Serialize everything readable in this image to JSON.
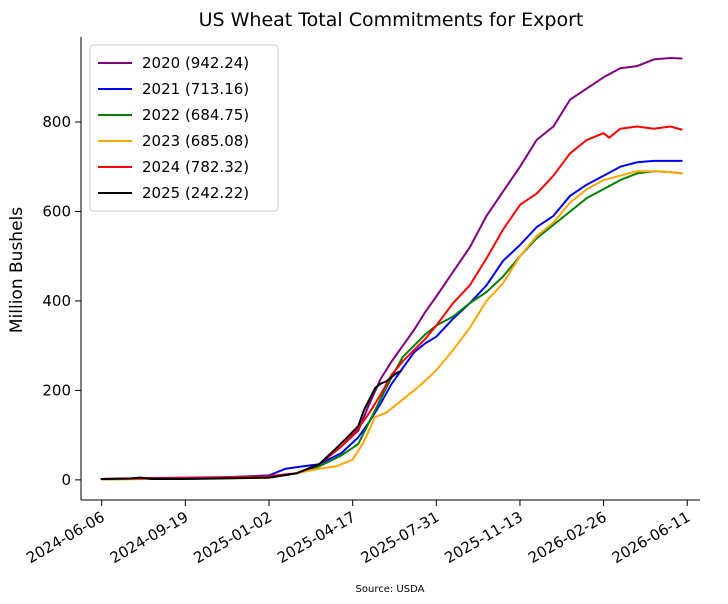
{
  "source_note": "Source: USDA",
  "colors": {
    "2020": "#800080",
    "2021": "#0000ff",
    "2022": "#008000",
    "2023": "#ffa500",
    "2024": "#ff0000",
    "2025": "#000000"
  },
  "chart_data": {
    "type": "line",
    "title": "US Wheat Total Commitments for Export",
    "xlabel": "",
    "ylabel": "Million Bushels",
    "xlim": [
      "2024-05-11",
      "2026-06-27"
    ],
    "ylim": [
      -45,
      990
    ],
    "x_ticks": [
      "2024-06-06",
      "2024-09-19",
      "2025-01-02",
      "2025-04-17",
      "2025-07-31",
      "2025-11-13",
      "2026-02-26",
      "2026-06-11"
    ],
    "y_ticks": [
      0,
      200,
      400,
      600,
      800
    ],
    "grid": false,
    "legend_position": "upper-left",
    "series": [
      {
        "name": "2020 (942.24)",
        "color": "#800080",
        "x": [
          "2024-06-06",
          "2024-08-01",
          "2024-09-19",
          "2024-11-01",
          "2025-01-02",
          "2025-02-06",
          "2025-03-06",
          "2025-04-03",
          "2025-04-24",
          "2025-05-08",
          "2025-05-22",
          "2025-06-05",
          "2025-06-19",
          "2025-07-03",
          "2025-07-17",
          "2025-07-31",
          "2025-08-21",
          "2025-09-11",
          "2025-10-02",
          "2025-10-23",
          "2025-11-13",
          "2025-12-04",
          "2025-12-25",
          "2026-01-15",
          "2026-02-05",
          "2026-02-26",
          "2026-03-19",
          "2026-04-09",
          "2026-04-30",
          "2026-05-21",
          "2026-06-04"
        ],
        "values": [
          2,
          4,
          5,
          6,
          8,
          15,
          35,
          75,
          110,
          170,
          225,
          265,
          300,
          335,
          375,
          410,
          465,
          520,
          590,
          645,
          700,
          760,
          790,
          850,
          875,
          900,
          920,
          925,
          940,
          943,
          942
        ]
      },
      {
        "name": "2021 (713.16)",
        "color": "#0000ff",
        "x": [
          "2024-06-06",
          "2024-08-01",
          "2024-09-19",
          "2024-11-01",
          "2025-01-02",
          "2025-01-23",
          "2025-02-13",
          "2025-03-06",
          "2025-04-03",
          "2025-04-24",
          "2025-05-08",
          "2025-05-22",
          "2025-06-05",
          "2025-06-19",
          "2025-07-03",
          "2025-07-17",
          "2025-07-31",
          "2025-08-21",
          "2025-09-11",
          "2025-10-02",
          "2025-10-23",
          "2025-11-13",
          "2025-12-04",
          "2025-12-25",
          "2026-01-15",
          "2026-02-05",
          "2026-02-26",
          "2026-03-19",
          "2026-04-09",
          "2026-04-30",
          "2026-05-21",
          "2026-06-04"
        ],
        "values": [
          2,
          3,
          4,
          5,
          10,
          25,
          30,
          35,
          60,
          95,
          130,
          170,
          215,
          250,
          285,
          305,
          320,
          360,
          395,
          435,
          490,
          525,
          565,
          590,
          635,
          660,
          680,
          700,
          710,
          713,
          713,
          713
        ]
      },
      {
        "name": "2022 (684.75)",
        "color": "#008000",
        "x": [
          "2024-06-06",
          "2024-08-01",
          "2024-09-19",
          "2024-11-01",
          "2025-01-02",
          "2025-02-06",
          "2025-03-06",
          "2025-04-03",
          "2025-04-24",
          "2025-05-08",
          "2025-05-22",
          "2025-06-05",
          "2025-06-19",
          "2025-07-03",
          "2025-07-17",
          "2025-07-31",
          "2025-08-21",
          "2025-09-11",
          "2025-10-02",
          "2025-10-23",
          "2025-11-13",
          "2025-12-04",
          "2025-12-25",
          "2026-01-15",
          "2026-02-05",
          "2026-02-26",
          "2026-03-19",
          "2026-04-09",
          "2026-04-30",
          "2026-05-21",
          "2026-06-04"
        ],
        "values": [
          1,
          2,
          3,
          4,
          5,
          15,
          30,
          55,
          80,
          130,
          180,
          230,
          275,
          300,
          325,
          345,
          365,
          395,
          420,
          455,
          500,
          540,
          570,
          600,
          630,
          650,
          670,
          685,
          690,
          688,
          685
        ]
      },
      {
        "name": "2023 (685.08)",
        "color": "#ffa500",
        "x": [
          "2024-06-06",
          "2024-08-01",
          "2024-09-19",
          "2024-11-01",
          "2025-01-02",
          "2025-02-06",
          "2025-03-06",
          "2025-03-27",
          "2025-04-17",
          "2025-05-01",
          "2025-05-15",
          "2025-05-29",
          "2025-06-12",
          "2025-06-26",
          "2025-07-10",
          "2025-07-31",
          "2025-08-21",
          "2025-09-11",
          "2025-10-02",
          "2025-10-23",
          "2025-11-13",
          "2025-12-04",
          "2025-12-25",
          "2026-01-15",
          "2026-02-05",
          "2026-02-26",
          "2026-03-19",
          "2026-04-09",
          "2026-04-30",
          "2026-05-21",
          "2026-06-04"
        ],
        "values": [
          1,
          2,
          3,
          4,
          5,
          15,
          25,
          30,
          45,
          85,
          140,
          150,
          170,
          190,
          210,
          245,
          290,
          340,
          400,
          440,
          500,
          545,
          575,
          620,
          650,
          670,
          680,
          690,
          690,
          688,
          685
        ]
      },
      {
        "name": "2024 (782.32)",
        "color": "#ff0000",
        "x": [
          "2024-06-06",
          "2024-08-01",
          "2024-09-19",
          "2024-11-01",
          "2025-01-02",
          "2025-02-06",
          "2025-03-06",
          "2025-04-03",
          "2025-04-24",
          "2025-05-08",
          "2025-05-22",
          "2025-06-05",
          "2025-06-19",
          "2025-07-03",
          "2025-07-17",
          "2025-07-31",
          "2025-08-21",
          "2025-09-11",
          "2025-10-02",
          "2025-10-23",
          "2025-11-13",
          "2025-12-04",
          "2025-12-25",
          "2026-01-15",
          "2026-02-05",
          "2026-02-26",
          "2026-03-05",
          "2026-03-19",
          "2026-04-09",
          "2026-04-30",
          "2026-05-21",
          "2026-06-04"
        ],
        "values": [
          2,
          3,
          4,
          5,
          8,
          15,
          35,
          75,
          115,
          150,
          190,
          235,
          265,
          290,
          315,
          345,
          395,
          435,
          495,
          560,
          615,
          640,
          680,
          730,
          760,
          775,
          765,
          785,
          790,
          785,
          790,
          783
        ]
      },
      {
        "name": "2025 (242.22)",
        "color": "#000000",
        "x": [
          "2024-06-06",
          "2024-07-11",
          "2024-07-25",
          "2024-08-08",
          "2024-09-19",
          "2024-11-01",
          "2025-01-02",
          "2025-02-06",
          "2025-03-06",
          "2025-03-27",
          "2025-04-10",
          "2025-04-24",
          "2025-05-01",
          "2025-05-08",
          "2025-05-15",
          "2025-05-22",
          "2025-05-29",
          "2025-06-05",
          "2025-06-12",
          "2025-06-16"
        ],
        "values": [
          2,
          3,
          5,
          2,
          2,
          3,
          5,
          15,
          35,
          70,
          95,
          120,
          155,
          180,
          205,
          215,
          220,
          230,
          240,
          242
        ]
      }
    ]
  }
}
